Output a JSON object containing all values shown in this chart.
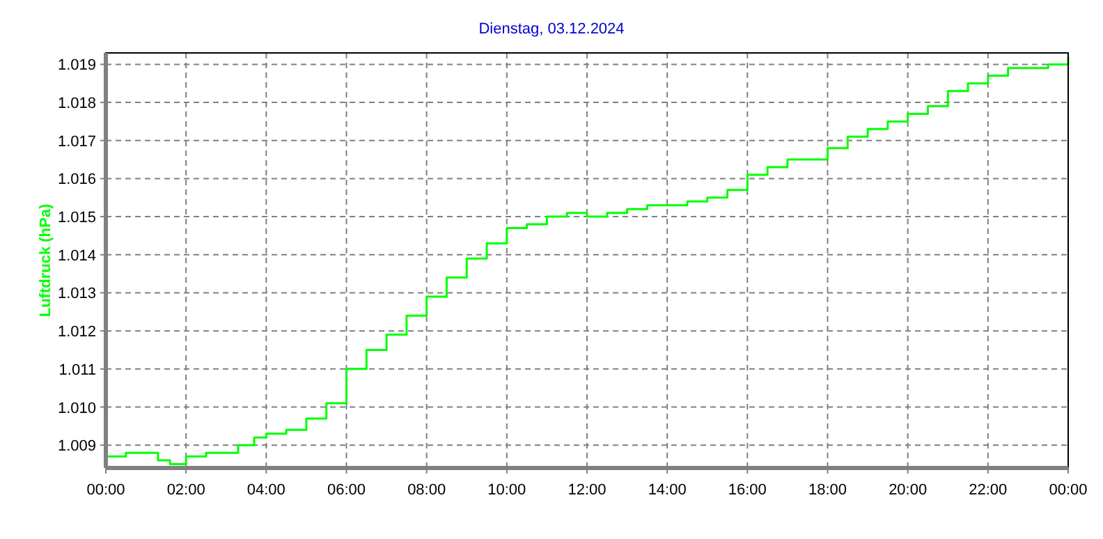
{
  "chart_data": {
    "type": "step",
    "title": "Dienstag, 03.12.2024",
    "ylabel": "Luftdruck (hPa)",
    "x": [
      0,
      0.5,
      1,
      1.3,
      1.6,
      2,
      2.5,
      3,
      3.3,
      3.7,
      4,
      4.5,
      4.8,
      5,
      5.5,
      6,
      6.5,
      7,
      7.5,
      8,
      8.5,
      9,
      9.5,
      10,
      10.5,
      11,
      11.5,
      12,
      12.5,
      13,
      13.5,
      14,
      14.5,
      15,
      15.5,
      16,
      16.5,
      17,
      17.5,
      18,
      18.5,
      19,
      19.5,
      20,
      20.5,
      21,
      21.5,
      22,
      22.5,
      23,
      23.5,
      24
    ],
    "series": [
      {
        "color": "#00ff00",
        "values": [
          1.0087,
          1.0088,
          1.0088,
          1.0086,
          1.0085,
          1.0087,
          1.0088,
          1.0088,
          1.009,
          1.0092,
          1.0093,
          1.0094,
          1.0094,
          1.0097,
          1.0101,
          1.011,
          1.0115,
          1.0119,
          1.0124,
          1.0129,
          1.0134,
          1.0139,
          1.0143,
          1.0147,
          1.0148,
          1.015,
          1.0151,
          1.015,
          1.0151,
          1.0152,
          1.0153,
          1.0153,
          1.0154,
          1.0155,
          1.0157,
          1.0161,
          1.0163,
          1.0165,
          1.0165,
          1.0168,
          1.0171,
          1.0173,
          1.0175,
          1.0177,
          1.0179,
          1.0183,
          1.0185,
          1.0187,
          1.0189,
          1.0189,
          1.019,
          1.0192
        ]
      }
    ],
    "xlim": [
      0,
      24
    ],
    "xticks": [
      {
        "value": 0,
        "label": "00:00"
      },
      {
        "value": 2,
        "label": "02:00"
      },
      {
        "value": 4,
        "label": "04:00"
      },
      {
        "value": 6,
        "label": "06:00"
      },
      {
        "value": 8,
        "label": "08:00"
      },
      {
        "value": 10,
        "label": "10:00"
      },
      {
        "value": 12,
        "label": "12:00"
      },
      {
        "value": 14,
        "label": "14:00"
      },
      {
        "value": 16,
        "label": "16:00"
      },
      {
        "value": 18,
        "label": "18:00"
      },
      {
        "value": 20,
        "label": "20:00"
      },
      {
        "value": 22,
        "label": "22:00"
      },
      {
        "value": 24,
        "label": "00:00"
      }
    ],
    "ylim": [
      1.0084,
      1.0193
    ],
    "yticks": [
      1.009,
      {
        "value": 1.01,
        "label": "1.010"
      },
      1.011,
      1.012,
      1.013,
      1.014,
      1.015,
      1.016,
      1.017,
      1.018,
      1.019
    ],
    "grid": true,
    "line_style": "solid",
    "marker": "none"
  }
}
